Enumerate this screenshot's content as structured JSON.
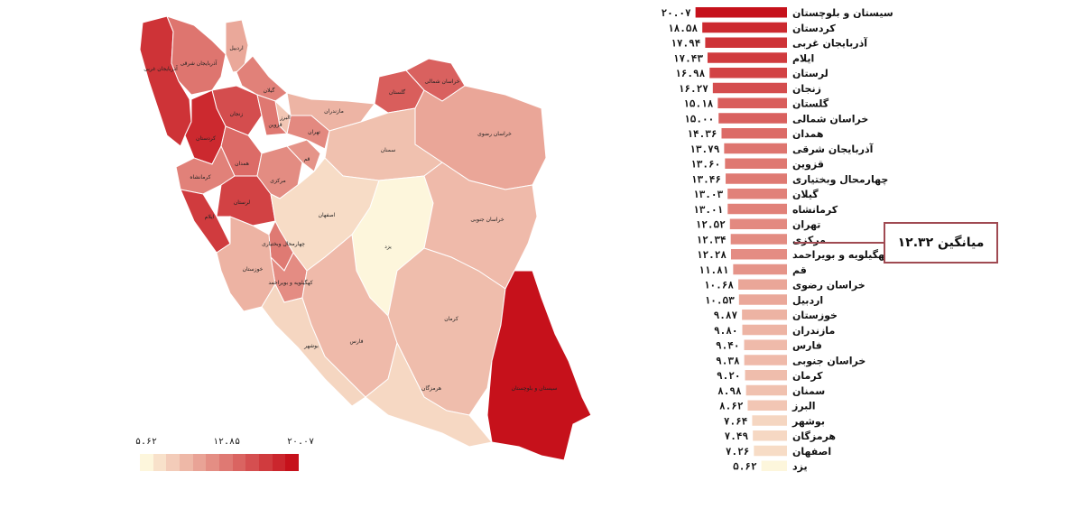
{
  "chart_data": [
    {
      "type": "bar",
      "orientation": "horizontal",
      "categories": [
        "سیستان و بلوچستان",
        "کردستان",
        "آذربایجان غربی",
        "ایلام",
        "لرستان",
        "زنجان",
        "گلستان",
        "خراسان شمالی",
        "همدان",
        "آذربایجان شرقی",
        "قزوین",
        "چهارمحال وبختیاری",
        "گیلان",
        "کرمانشاه",
        "تهران",
        "مرکزی",
        "کهگیلویه و بویراحمد",
        "قم",
        "خراسان رضوی",
        "اردبیل",
        "خوزستان",
        "مازندران",
        "فارس",
        "خراسان جنوبی",
        "کرمان",
        "سمنان",
        "البرز",
        "بوشهر",
        "هرمزگان",
        "اصفهان",
        "یزد"
      ],
      "values": [
        20.07,
        18.58,
        17.94,
        17.43,
        16.98,
        16.27,
        15.18,
        15.0,
        14.36,
        13.79,
        13.6,
        13.46,
        13.03,
        13.01,
        12.52,
        12.34,
        12.28,
        11.81,
        10.68,
        10.53,
        9.87,
        9.8,
        9.4,
        9.38,
        9.2,
        8.98,
        8.62,
        7.64,
        7.49,
        7.26,
        5.62
      ],
      "value_labels": [
        "۲۰.۰۷",
        "۱۸.۵۸",
        "۱۷.۹۴",
        "۱۷.۴۳",
        "۱۶.۹۸",
        "۱۶.۲۷",
        "۱۵.۱۸",
        "۱۵.۰۰",
        "۱۴.۳۶",
        "۱۳.۷۹",
        "۱۳.۶۰",
        "۱۳.۴۶",
        "۱۳.۰۳",
        "۱۳.۰۱",
        "۱۲.۵۲",
        "۱۲.۳۴",
        "۱۲.۲۸",
        "۱۱.۸۱",
        "۱۰.۶۸",
        "۱۰.۵۳",
        "۹.۸۷",
        "۹.۸۰",
        "۹.۴۰",
        "۹.۳۸",
        "۹.۲۰",
        "۸.۹۸",
        "۸.۶۲",
        "۷.۶۴",
        "۷.۴۹",
        "۷.۲۶",
        "۵.۶۲"
      ],
      "average": {
        "value": 12.32,
        "label": "میانگین ۱۲.۳۲"
      },
      "color_scale": {
        "low": "#fdf6dc",
        "high": "#c6111b"
      }
    },
    {
      "type": "heatmap",
      "subtype": "choropleth-map",
      "region_labels": [
        "آذربایجان غربی",
        "آذربایجان شرقی",
        "اردبیل",
        "گیلان",
        "زنجان",
        "کردستان",
        "قزوین",
        "همدان",
        "کرمانشاه",
        "ایلام",
        "لرستان",
        "مرکزی",
        "قم",
        "تهران",
        "البرز",
        "مازندران",
        "گلستان",
        "خراسان شمالی",
        "خراسان رضوی",
        "سمنان",
        "اصفهان",
        "یزد",
        "خراسان جنوبی",
        "چهارمحال وبختیاری",
        "کهگیلویه و بویراحمد",
        "خوزستان",
        "بوشهر",
        "فارس",
        "کرمان",
        "هرمزگان",
        "سیستان و بلوچستان"
      ],
      "legend": {
        "min_label": "۵.۶۲",
        "mid_label": "۱۲.۸۵",
        "max_label": "۲۰.۰۷",
        "min": 5.62,
        "max": 20.07
      }
    }
  ]
}
